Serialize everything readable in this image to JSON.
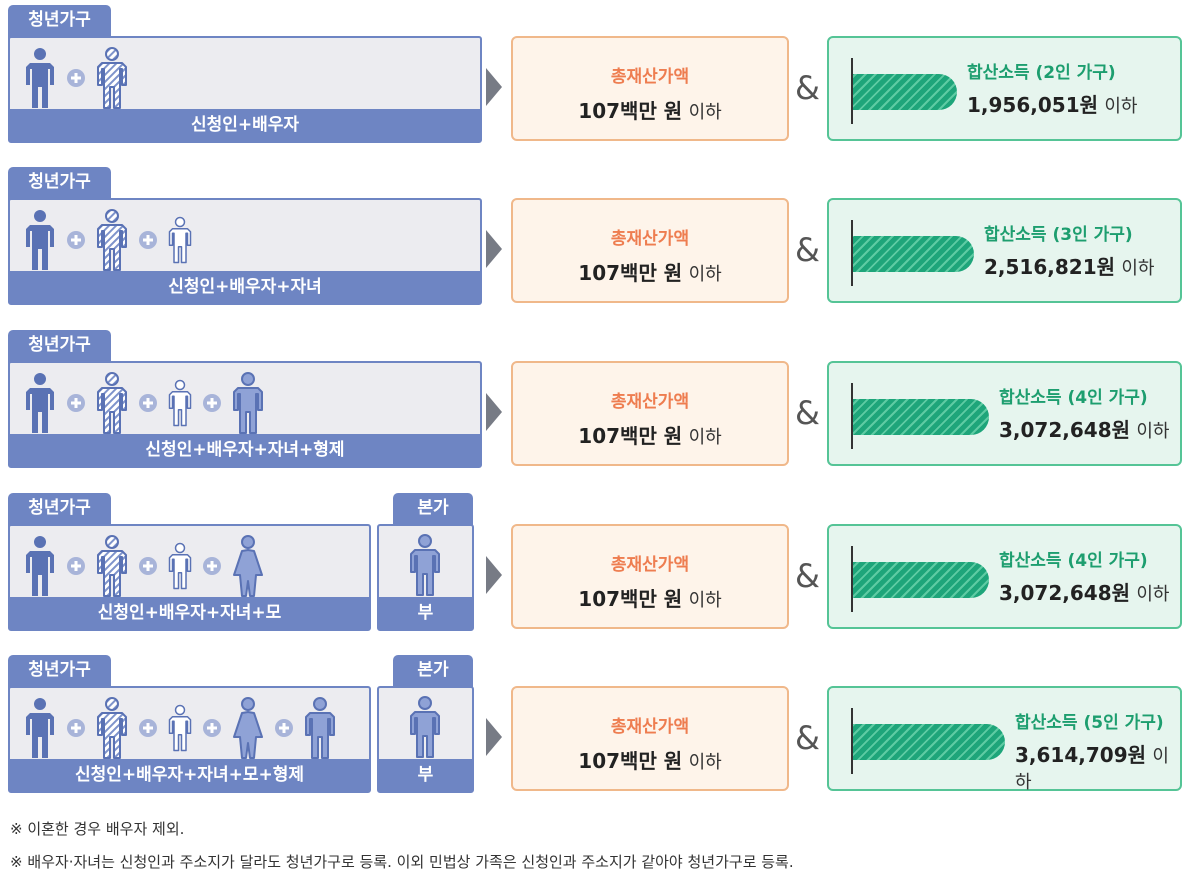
{
  "rows": [
    {
      "household_tab": "청년가구",
      "members_caption": "신청인+배우자",
      "people": [
        "male-solid",
        "male-hatched"
      ],
      "asset": {
        "title": "총재산가액",
        "amount": "107",
        "unit": "백만 원",
        "suffix": "이하"
      },
      "ampersand": "&",
      "income": {
        "title": "합산소득 (2인 가구)",
        "amount": "1,956,051",
        "unit": "원",
        "suffix": "이하",
        "bar_fraction": 0.54
      }
    },
    {
      "household_tab": "청년가구",
      "members_caption": "신청인+배우자+자녀",
      "people": [
        "male-solid",
        "male-hatched",
        "child"
      ],
      "asset": {
        "title": "총재산가액",
        "amount": "107",
        "unit": "백만 원",
        "suffix": "이하"
      },
      "ampersand": "&",
      "income": {
        "title": "합산소득 (3인 가구)",
        "amount": "2,516,821",
        "unit": "원",
        "suffix": "이하",
        "bar_fraction": 0.7
      }
    },
    {
      "household_tab": "청년가구",
      "members_caption": "신청인+배우자+자녀+형제",
      "people": [
        "male-solid",
        "male-hatched",
        "child",
        "adult-light"
      ],
      "asset": {
        "title": "총재산가액",
        "amount": "107",
        "unit": "백만 원",
        "suffix": "이하"
      },
      "ampersand": "&",
      "income": {
        "title": "합산소득 (4인 가구)",
        "amount": "3,072,648",
        "unit": "원",
        "suffix": "이하",
        "bar_fraction": 0.85
      }
    },
    {
      "household_tab": "청년가구",
      "members_caption": "신청인+배우자+자녀+모",
      "people": [
        "male-solid",
        "male-hatched",
        "child",
        "female-light"
      ],
      "family_tab": "본가",
      "family_caption": "부",
      "family_people": [
        "adult-light"
      ],
      "asset": {
        "title": "총재산가액",
        "amount": "107",
        "unit": "백만 원",
        "suffix": "이하"
      },
      "ampersand": "&",
      "income": {
        "title": "합산소득 (4인 가구)",
        "amount": "3,072,648",
        "unit": "원",
        "suffix": "이하",
        "bar_fraction": 0.85
      }
    },
    {
      "household_tab": "청년가구",
      "members_caption": "신청인+배우자+자녀+모+형제",
      "people": [
        "male-solid",
        "male-hatched",
        "child",
        "female-light",
        "adult-light"
      ],
      "family_tab": "본가",
      "family_caption": "부",
      "family_people": [
        "adult-light"
      ],
      "asset": {
        "title": "총재산가액",
        "amount": "107",
        "unit": "백만 원",
        "suffix": "이하"
      },
      "ampersand": "&",
      "income": {
        "title": "합산소득 (5인 가구)",
        "amount": "3,614,709",
        "unit": "원",
        "suffix": "이하",
        "bar_fraction": 1.0
      }
    }
  ],
  "notes": [
    "※ 이혼한 경우 배우자 제외.",
    "※ 배우자·자녀는 신청인과 주소지가 달라도 청년가구로 등록. 이외 민법상 가족은 신청인과 주소지가 같아야 청년가구로 등록."
  ],
  "colors": {
    "panel_blue": "#6e85c3",
    "asset_orange": "#ee7d50",
    "income_green": "#1d9e6f"
  }
}
